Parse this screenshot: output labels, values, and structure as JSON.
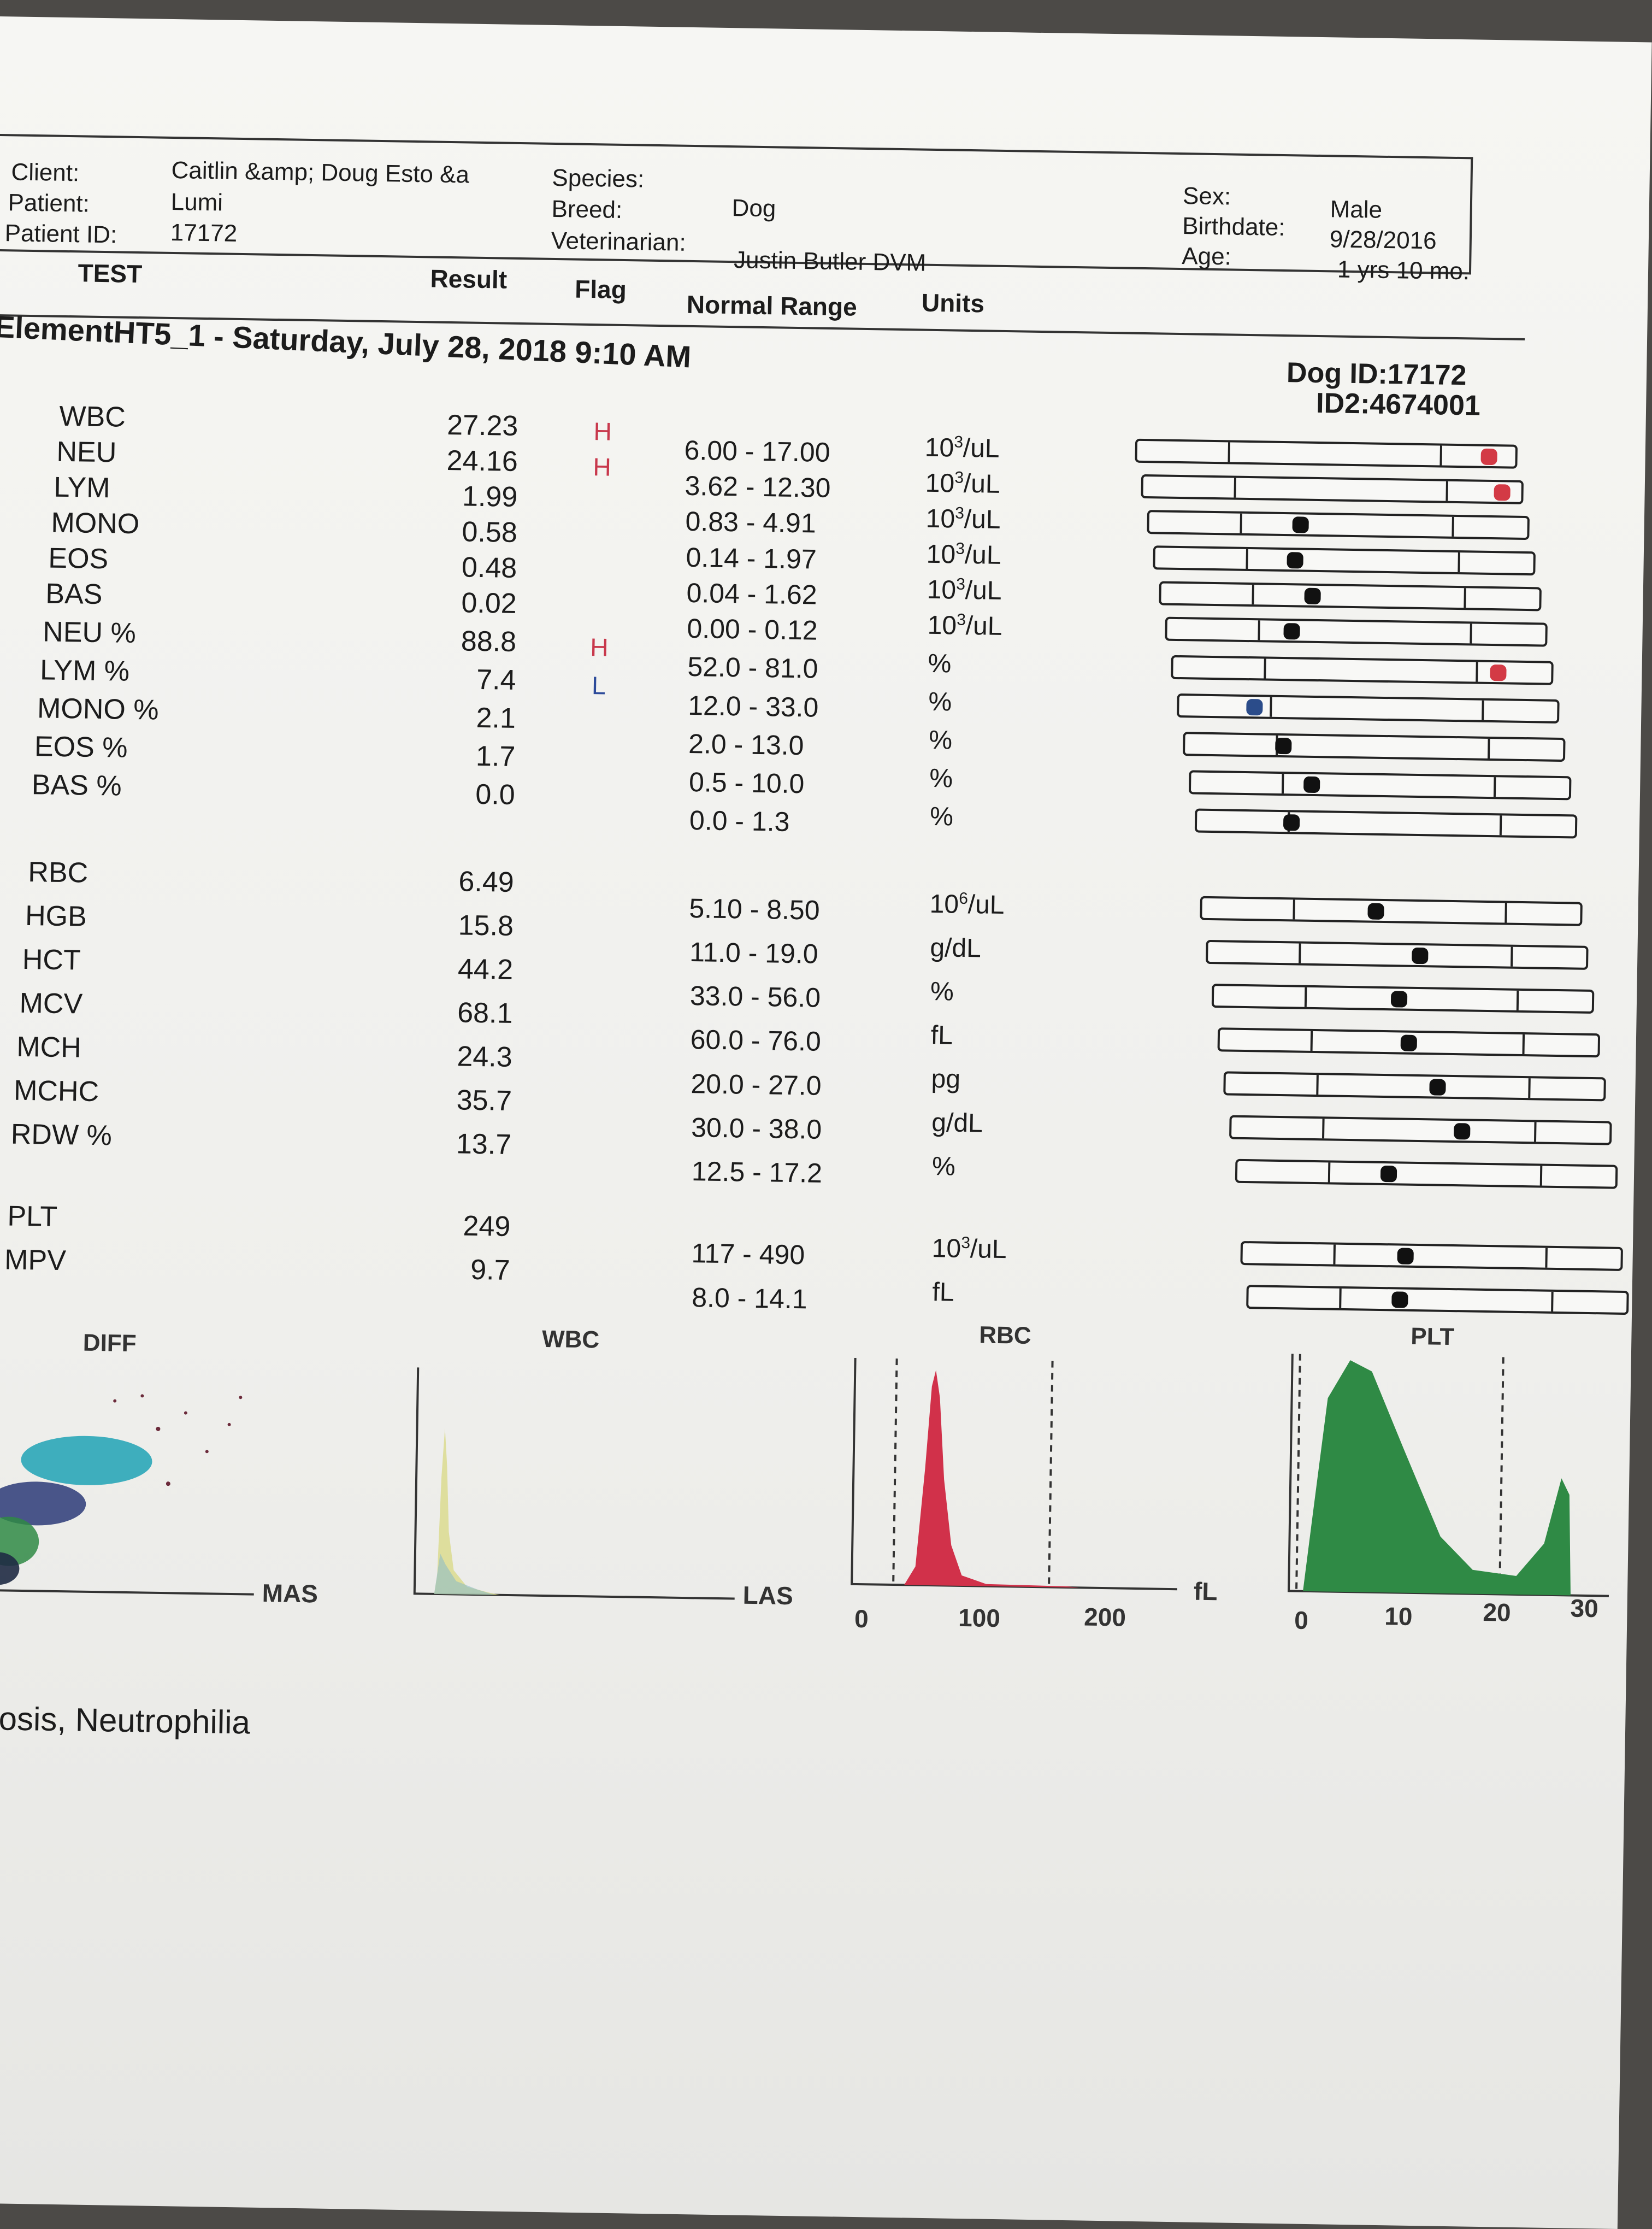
{
  "patient": {
    "client_label": "Client:",
    "client": "Caitlin &amp; Doug Esto &a",
    "patient_label": "Patient:",
    "patient": "Lumi",
    "patient_id_label": "Patient ID:",
    "patient_id": "17172",
    "species_label": "Species:",
    "species": "Dog",
    "breed_label": "Breed:",
    "vet_label": "Veterinarian:",
    "vet": "Justin Butler DVM",
    "sex_label": "Sex:",
    "sex": "Male",
    "birthdate_label": "Birthdate:",
    "birthdate": "9/28/2016",
    "age_label": "Age:",
    "age": "1 yrs 10 mo."
  },
  "columns": {
    "test": "TEST",
    "result": "Result",
    "flag": "Flag",
    "range": "Normal Range",
    "units": "Units"
  },
  "run": {
    "title": "ElementHT5_1 - Saturday, July 28, 2018 9:10 AM",
    "dog_id": "Dog ID:17172",
    "id2": "ID2:4674001"
  },
  "results": [
    {
      "test": "WBC",
      "value": "27.23",
      "flag": "H",
      "range": "6.00 - 17.00",
      "unit_base": "10",
      "unit_exp": "3",
      "unit_rest": "/uL",
      "level": 0.93
    },
    {
      "test": "NEU",
      "value": "24.16",
      "flag": "H",
      "range": "3.62 - 12.30",
      "unit_base": "10",
      "unit_exp": "3",
      "unit_rest": "/uL",
      "level": 0.95
    },
    {
      "test": "LYM",
      "value": "1.99",
      "flag": "",
      "range": "0.83 - 4.91",
      "unit_base": "10",
      "unit_exp": "3",
      "unit_rest": "/uL",
      "level": 0.4
    },
    {
      "test": "MONO",
      "value": "0.58",
      "flag": "",
      "range": "0.14 - 1.97",
      "unit_base": "10",
      "unit_exp": "3",
      "unit_rest": "/uL",
      "level": 0.37
    },
    {
      "test": "EOS",
      "value": "0.48",
      "flag": "",
      "range": "0.04 - 1.62",
      "unit_base": "10",
      "unit_exp": "3",
      "unit_rest": "/uL",
      "level": 0.4
    },
    {
      "test": "BAS",
      "value": "0.02",
      "flag": "",
      "range": "0.00 - 0.12",
      "unit_base": "10",
      "unit_exp": "3",
      "unit_rest": "/uL",
      "level": 0.33
    },
    {
      "test": "NEU %",
      "value": "88.8",
      "flag": "H",
      "range": "52.0 - 81.0",
      "unit_base": "%",
      "unit_exp": "",
      "unit_rest": "",
      "level": 0.86
    },
    {
      "test": "LYM %",
      "value": "7.4",
      "flag": "L",
      "range": "12.0 - 33.0",
      "unit_base": "%",
      "unit_exp": "",
      "unit_rest": "",
      "level": 0.2
    },
    {
      "test": "MONO %",
      "value": "2.1",
      "flag": "",
      "range": "2.0 - 13.0",
      "unit_base": "%",
      "unit_exp": "",
      "unit_rest": "",
      "level": 0.26
    },
    {
      "test": "EOS %",
      "value": "1.7",
      "flag": "",
      "range": "0.5 - 10.0",
      "unit_base": "%",
      "unit_exp": "",
      "unit_rest": "",
      "level": 0.32
    },
    {
      "test": "BAS %",
      "value": "0.0",
      "flag": "",
      "range": "0.0 - 1.3",
      "unit_base": "%",
      "unit_exp": "",
      "unit_rest": "",
      "level": 0.25
    },
    {
      "test": "RBC",
      "value": "6.49",
      "flag": "",
      "range": "5.10 - 8.50",
      "unit_base": "10",
      "unit_exp": "6",
      "unit_rest": "/uL",
      "level": 0.46
    },
    {
      "test": "HGB",
      "value": "15.8",
      "flag": "",
      "range": "11.0 - 19.0",
      "unit_base": "g/dL",
      "unit_exp": "",
      "unit_rest": "",
      "level": 0.56
    },
    {
      "test": "HCT",
      "value": "44.2",
      "flag": "",
      "range": "33.0 - 56.0",
      "unit_base": "%",
      "unit_exp": "",
      "unit_rest": "",
      "level": 0.49
    },
    {
      "test": "MCV",
      "value": "68.1",
      "flag": "",
      "range": "60.0 - 76.0",
      "unit_base": "fL",
      "unit_exp": "",
      "unit_rest": "",
      "level": 0.5
    },
    {
      "test": "MCH",
      "value": "24.3",
      "flag": "",
      "range": "20.0 - 27.0",
      "unit_base": "pg",
      "unit_exp": "",
      "unit_rest": "",
      "level": 0.56
    },
    {
      "test": "MCHC",
      "value": "35.7",
      "flag": "",
      "range": "30.0 - 38.0",
      "unit_base": "g/dL",
      "unit_exp": "",
      "unit_rest": "",
      "level": 0.61
    },
    {
      "test": "RDW %",
      "value": "13.7",
      "flag": "",
      "range": "12.5 - 17.2",
      "unit_base": "%",
      "unit_exp": "",
      "unit_rest": "",
      "level": 0.4
    },
    {
      "test": "PLT",
      "value": "249",
      "flag": "",
      "range": "117 - 490",
      "unit_base": "10",
      "unit_exp": "3",
      "unit_rest": "/uL",
      "level": 0.43
    },
    {
      "test": "MPV",
      "value": "9.7",
      "flag": "",
      "range": "8.0 - 14.1",
      "unit_base": "fL",
      "unit_exp": "",
      "unit_rest": "",
      "level": 0.4
    }
  ],
  "graphs": {
    "diff": {
      "title": "DIFF",
      "xlabel": "MAS"
    },
    "wbc": {
      "title": "WBC",
      "xlabel": "LAS"
    },
    "rbc": {
      "title": "RBC",
      "ticks": [
        "0",
        "100",
        "200"
      ],
      "unit": "fL"
    },
    "plt": {
      "title": "PLT",
      "ticks": [
        "0",
        "10",
        "20",
        "30"
      ]
    }
  },
  "interpretation": "ytosis, Neutrophilia",
  "colors": {
    "high": "#d33a45",
    "low": "#2b4c8a",
    "normal": "#111111",
    "rbc_fill": "#d1314a",
    "plt_fill": "#2f8a45",
    "diff_cyan": "#2aa6b8",
    "wbc_yellow": "#d9d98a"
  }
}
